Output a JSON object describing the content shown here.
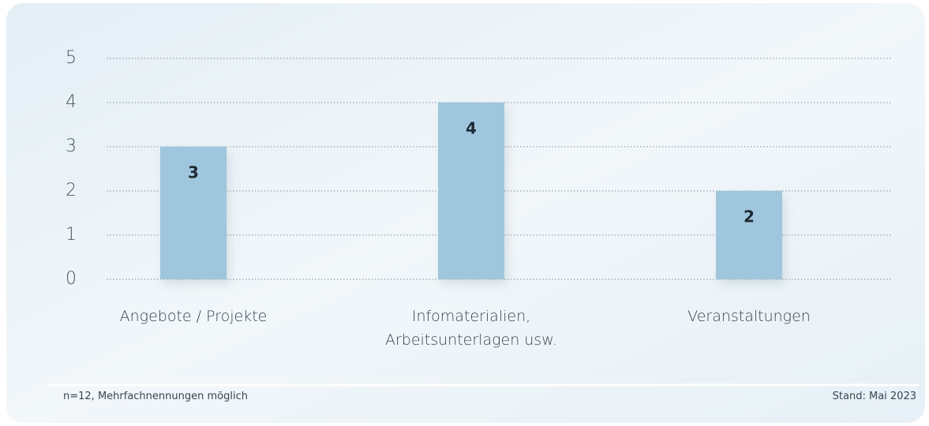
{
  "chart_data": {
    "type": "bar",
    "categories": [
      "Angebote / Projekte",
      "Infomaterialien, Arbeitsunterlagen usw.",
      "Veranstaltungen"
    ],
    "values": [
      3,
      4,
      2
    ],
    "color": "#9fc6dd",
    "ylim": [
      0,
      5
    ],
    "yticks": [
      0,
      1,
      2,
      3,
      4,
      5
    ],
    "grid": true,
    "footnote": "n=12, Mehrfachnennungen möglich",
    "date_note": "Stand: Mai 2023"
  }
}
